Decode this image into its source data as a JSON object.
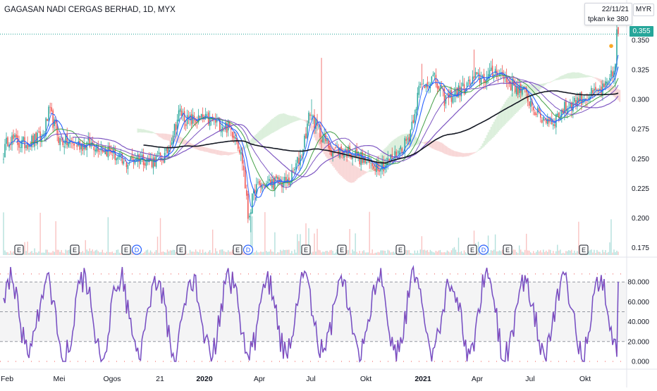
{
  "window": {
    "symbol_title": "GAGASAN NADI CERGAS BERHAD, 1D, MYX",
    "currency": "MYR",
    "tooltip_date": "22/11/21",
    "tooltip_text": "tpkan ke 380"
  },
  "colors": {
    "up": "#26a69a",
    "down": "#ef5350",
    "ma_fast": "#2962ff",
    "ma_green": "#43a047",
    "ma_purple": "#7e57c2",
    "ma_slow": "#131722",
    "cloud_green": "#a5d6a7",
    "cloud_red": "#ef9a9a",
    "rsi_line": "#8e44ad",
    "accent": "#26a69a"
  },
  "chart_data": [
    {
      "type": "line",
      "name": "price",
      "last_price_label": "0.355",
      "ylim": [
        0.17,
        0.36
      ],
      "y_ticks": [
        "0.350",
        "0.325",
        "0.300",
        "0.275",
        "0.250",
        "0.225",
        "0.200",
        "0.175"
      ],
      "x_ticks": [
        "Feb",
        "Mei",
        "Ogos",
        "21",
        "2020",
        "Apr",
        "Jul",
        "Okt",
        "2021",
        "Apr",
        "Jul",
        "Okt"
      ],
      "price_anchors": [
        [
          0,
          0.245
        ],
        [
          12,
          0.268
        ],
        [
          30,
          0.262
        ],
        [
          60,
          0.268
        ],
        [
          70,
          0.29
        ],
        [
          85,
          0.265
        ],
        [
          110,
          0.262
        ],
        [
          135,
          0.262
        ],
        [
          160,
          0.255
        ],
        [
          175,
          0.245
        ],
        [
          195,
          0.252
        ],
        [
          215,
          0.248
        ],
        [
          235,
          0.252
        ],
        [
          255,
          0.29
        ],
        [
          265,
          0.282
        ],
        [
          285,
          0.283
        ],
        [
          300,
          0.282
        ],
        [
          320,
          0.278
        ],
        [
          335,
          0.27
        ],
        [
          345,
          0.245
        ],
        [
          352,
          0.2
        ],
        [
          362,
          0.225
        ],
        [
          385,
          0.23
        ],
        [
          410,
          0.23
        ],
        [
          428,
          0.255
        ],
        [
          440,
          0.29
        ],
        [
          450,
          0.275
        ],
        [
          470,
          0.258
        ],
        [
          500,
          0.255
        ],
        [
          525,
          0.245
        ],
        [
          545,
          0.245
        ],
        [
          565,
          0.255
        ],
        [
          580,
          0.268
        ],
        [
          595,
          0.31
        ],
        [
          615,
          0.318
        ],
        [
          630,
          0.3
        ],
        [
          660,
          0.31
        ],
        [
          675,
          0.318
        ],
        [
          690,
          0.318
        ],
        [
          705,
          0.325
        ],
        [
          720,
          0.315
        ],
        [
          745,
          0.305
        ],
        [
          765,
          0.285
        ],
        [
          785,
          0.282
        ],
        [
          800,
          0.292
        ],
        [
          820,
          0.3
        ],
        [
          845,
          0.305
        ],
        [
          860,
          0.31
        ],
        [
          872,
          0.325
        ],
        [
          875,
          0.355
        ]
      ],
      "earnings_markers": [
        "E",
        "E",
        "E",
        "E",
        "E",
        "E",
        "E",
        "E",
        "E",
        "E",
        "E"
      ],
      "dividend_markers": [
        "D",
        "D",
        "D"
      ]
    },
    {
      "type": "line",
      "name": "oscillator",
      "ylim": [
        -5,
        100
      ],
      "y_ticks": [
        "80.000",
        "60.000",
        "40.000",
        "20.000",
        "0.000"
      ],
      "levels": [
        80,
        50,
        20
      ]
    }
  ]
}
